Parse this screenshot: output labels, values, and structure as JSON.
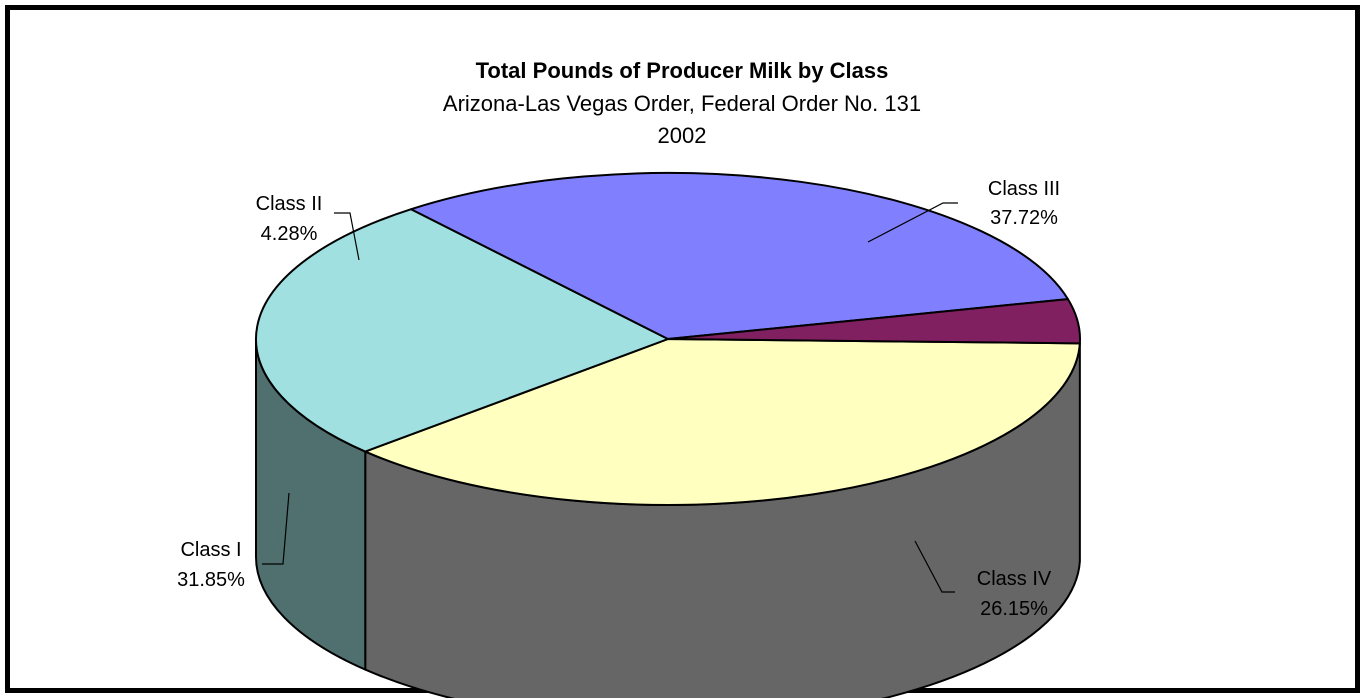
{
  "chart_data": {
    "type": "pie",
    "title": "Total Pounds of Producer Milk by Class",
    "subtitle": "Arizona-Las Vegas Order, Federal Order No. 131",
    "subtitle2": "2002",
    "unit": "%",
    "slices": [
      {
        "label": "Class III",
        "value": 37.72,
        "value_text": "37.72%",
        "color": "#FFFFC0"
      },
      {
        "label": "Class IV",
        "value": 26.15,
        "value_text": "26.15%",
        "color": "#A0E0E0"
      },
      {
        "label": "Class I",
        "value": 31.85,
        "value_text": "31.85%",
        "color": "#8080FF"
      },
      {
        "label": "Class II",
        "value": 4.28,
        "value_text": "4.28%",
        "color": "#802060"
      }
    ],
    "style": "3d-pie",
    "legend": "none"
  },
  "colors": {
    "frame": "#000000",
    "background": "#FFFFFF",
    "side_class_i": "#404080",
    "side_class_iv": "#507070"
  }
}
